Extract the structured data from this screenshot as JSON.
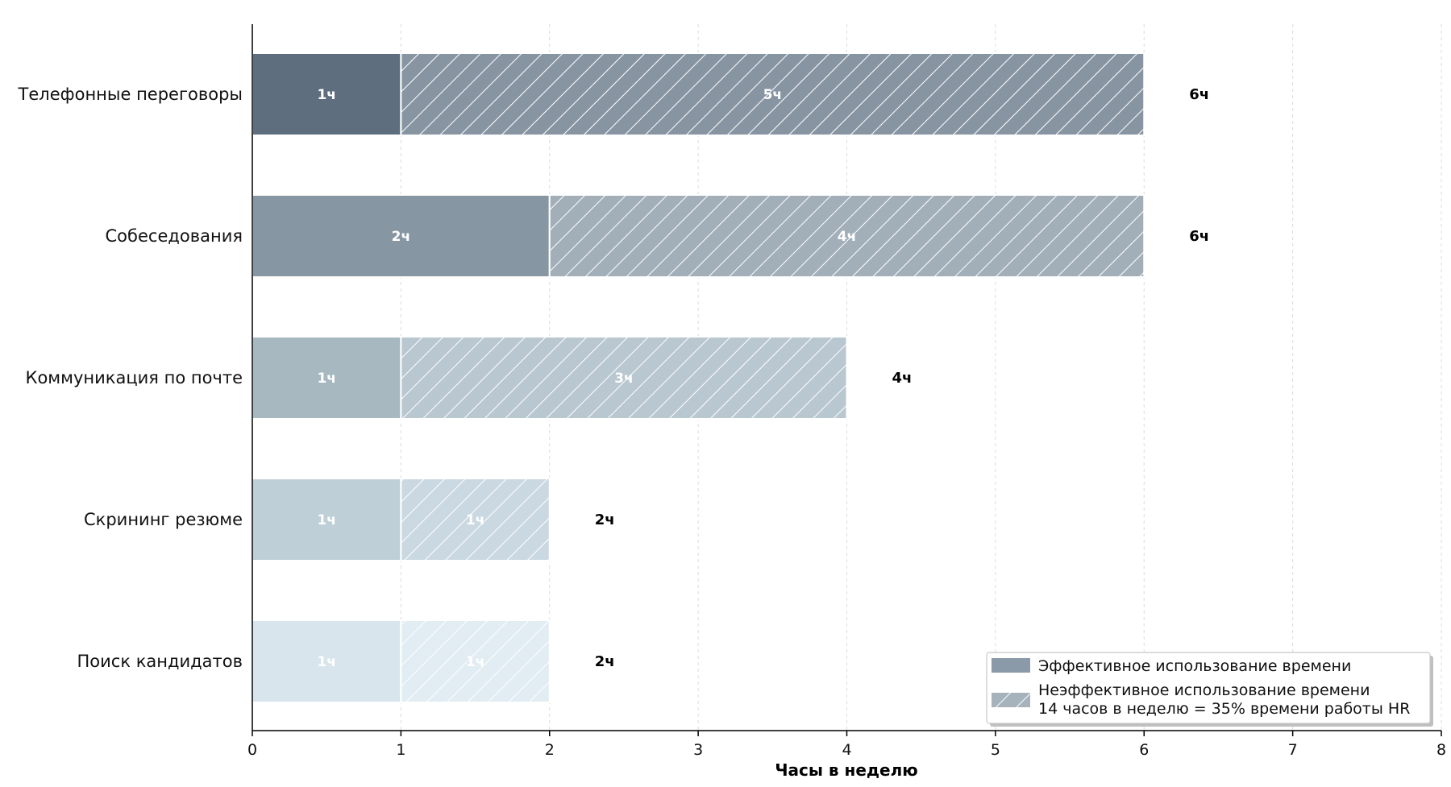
{
  "chart_data": {
    "type": "bar",
    "orientation": "horizontal",
    "stacked": true,
    "categories": [
      "Телефонные переговоры",
      "Собеседования",
      "Коммуникация по почте",
      "Скрининг резюме",
      "Поиск кандидатов"
    ],
    "series": [
      {
        "name": "Эффективное использование времени",
        "values": [
          1,
          2,
          1,
          1,
          1
        ],
        "labels": [
          "1ч",
          "2ч",
          "1ч",
          "1ч",
          "1ч"
        ],
        "pattern": "solid"
      },
      {
        "name": "Неэффективное использование времени",
        "values": [
          5,
          4,
          3,
          1,
          1
        ],
        "labels": [
          "5ч",
          "4ч",
          "3ч",
          "1ч",
          "1ч"
        ],
        "pattern": "hatched"
      }
    ],
    "totals": [
      6,
      6,
      4,
      2,
      2
    ],
    "total_labels": [
      "6ч",
      "6ч",
      "4ч",
      "2ч",
      "2ч"
    ],
    "category_colors": [
      "#5f6e7e",
      "#8696a3",
      "#a8b8c1",
      "#bfcfd7",
      "#d8e5ed"
    ],
    "hatched_colors": [
      "#8795a3",
      "#a2aeb8",
      "#b9c7d0",
      "#cad8e1",
      "#e1ecf3"
    ],
    "xlabel": "Часы в неделю",
    "ylabel": "",
    "xlim": [
      0,
      8
    ],
    "xticks": [
      "0",
      "1",
      "2",
      "3",
      "4",
      "5",
      "6",
      "7",
      "8"
    ],
    "grid": "vertical, dashed",
    "legend": {
      "placement": "bottom-right",
      "entries": [
        {
          "key": "effective",
          "label": "Эффективное использование времени",
          "color": "#8a9aa8"
        },
        {
          "key": "ineffective",
          "label_line1": "Неэффективное использование времени",
          "label_line2": "14 часов в неделю = 35% времени работы HR",
          "color": "#a6b3bd"
        }
      ]
    }
  }
}
